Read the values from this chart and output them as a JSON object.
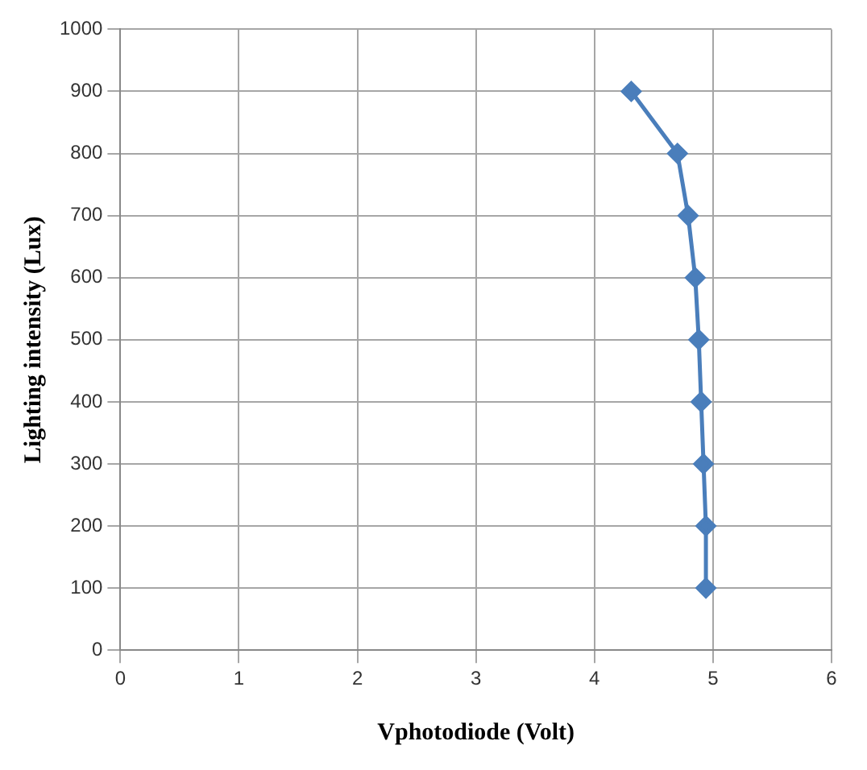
{
  "chart_data": {
    "type": "line",
    "xlabel": "Vphotodiode (Volt)",
    "ylabel": "Lighting intensity (Lux)",
    "series": [
      {
        "color": "#4a7ebb",
        "x": [
          4.31,
          4.7,
          4.79,
          4.85,
          4.88,
          4.9,
          4.92,
          4.94,
          4.94
        ],
        "values": [
          900,
          800,
          700,
          600,
          500,
          400,
          300,
          200,
          100
        ]
      }
    ],
    "xlim": [
      0,
      6
    ],
    "xticks": [
      0,
      1,
      2,
      3,
      4,
      5,
      6
    ],
    "ylim": [
      0,
      1000
    ],
    "yticks": [
      0,
      100,
      200,
      300,
      400,
      500,
      600,
      700,
      800,
      900,
      1000
    ],
    "grid": true,
    "legend": false,
    "marker": "diamond",
    "line_style": "solid"
  }
}
